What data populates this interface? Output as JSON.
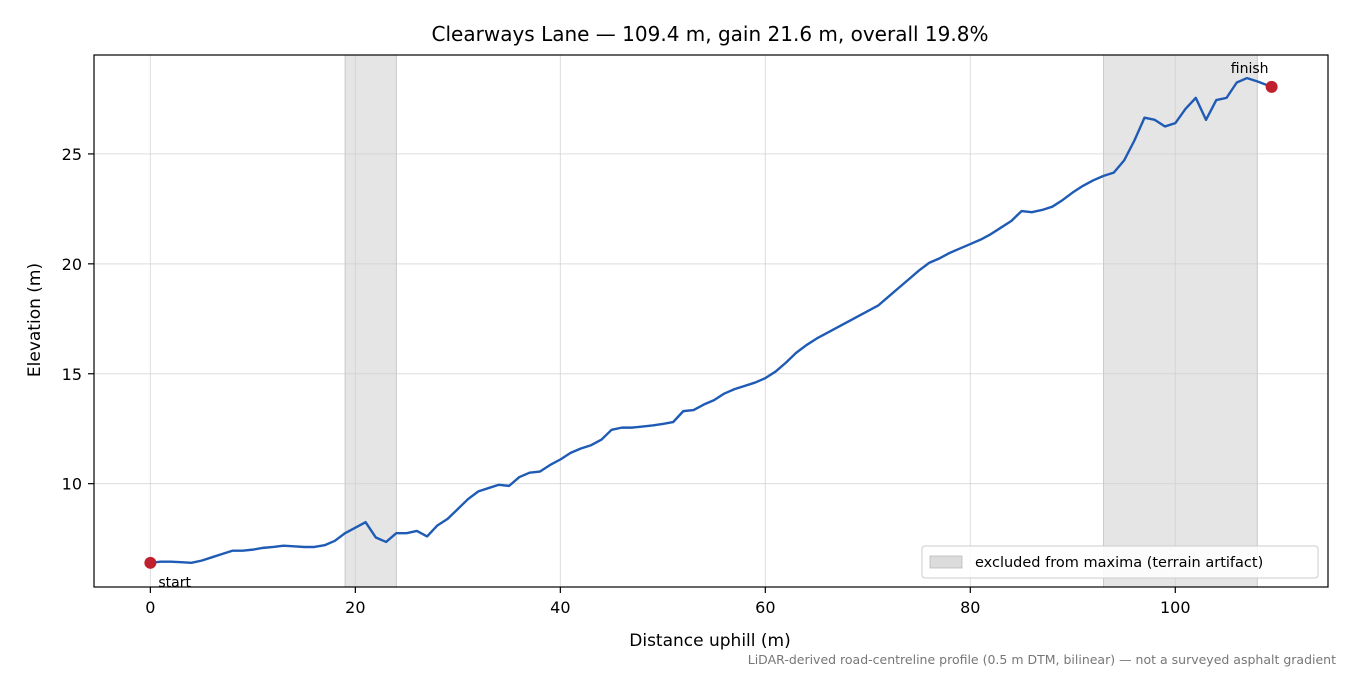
{
  "chart_data": {
    "type": "line",
    "title": "Clearways Lane — 109.4 m, gain 21.6 m, overall 19.8%",
    "xlabel": "Distance uphill (m)",
    "ylabel": "Elevation (m)",
    "xlim": [
      -5.5,
      114.9
    ],
    "ylim": [
      5.3,
      29.5
    ],
    "xticks": [
      0,
      20,
      40,
      60,
      80,
      100
    ],
    "yticks": [
      10,
      15,
      20,
      25
    ],
    "grid": true,
    "line_color": "#1f5bb5",
    "marker_color": "#c0202e",
    "band_color": "#dcdcdc",
    "series": [
      {
        "x": [
          0,
          1,
          2,
          3,
          4,
          5,
          6,
          7,
          8,
          9,
          10,
          11,
          12,
          13,
          14,
          15,
          16,
          17,
          18,
          19,
          20,
          21,
          22,
          23,
          24,
          25,
          26,
          27,
          28,
          29,
          30,
          31,
          32,
          33,
          34,
          35,
          36,
          37,
          38,
          39,
          40,
          41,
          42,
          43,
          44,
          45,
          46,
          47,
          48,
          49,
          50,
          51,
          52,
          53,
          54,
          55,
          56,
          57,
          58,
          59,
          60,
          61,
          62,
          63,
          64,
          65,
          66,
          67,
          68,
          69,
          70,
          71,
          72,
          73,
          74,
          75,
          76,
          77,
          78,
          79,
          80,
          81,
          82,
          83,
          84,
          85,
          86,
          87,
          88,
          89,
          90,
          91,
          92,
          93,
          94,
          95,
          96,
          97,
          98,
          99,
          100,
          101,
          102,
          103,
          104,
          105,
          106,
          107,
          108,
          109.4
        ],
        "y": [
          6.4,
          6.45,
          6.45,
          6.43,
          6.4,
          6.5,
          6.65,
          6.8,
          6.95,
          6.95,
          7.0,
          7.08,
          7.12,
          7.18,
          7.15,
          7.12,
          7.12,
          7.2,
          7.4,
          7.75,
          8.0,
          8.25,
          7.55,
          7.35,
          7.75,
          7.75,
          7.85,
          7.6,
          8.1,
          8.4,
          8.85,
          9.3,
          9.65,
          9.8,
          9.95,
          9.9,
          10.3,
          10.5,
          10.55,
          10.85,
          11.1,
          11.4,
          11.6,
          11.75,
          12.0,
          12.45,
          12.55,
          12.55,
          12.6,
          12.65,
          12.72,
          12.8,
          13.3,
          13.35,
          13.6,
          13.8,
          14.1,
          14.3,
          14.45,
          14.6,
          14.8,
          15.1,
          15.5,
          15.95,
          16.3,
          16.6,
          16.85,
          17.1,
          17.35,
          17.6,
          17.85,
          18.1,
          18.5,
          18.9,
          19.3,
          19.7,
          20.05,
          20.25,
          20.5,
          20.7,
          20.9,
          21.1,
          21.35,
          21.65,
          21.95,
          22.4,
          22.35,
          22.45,
          22.6,
          22.9,
          23.25,
          23.55,
          23.8,
          24.0,
          24.15,
          24.7,
          25.6,
          26.65,
          26.55,
          26.25,
          26.4,
          27.05,
          27.55,
          26.55,
          27.45,
          27.55,
          28.25,
          28.45,
          28.3,
          28.05
        ]
      }
    ],
    "excluded_bands": [
      [
        19,
        24
      ],
      [
        93,
        108
      ]
    ],
    "legend": {
      "label": "excluded from maxima (terrain artifact)",
      "placement": "lower-right"
    },
    "annotations": {
      "start": {
        "label": "start",
        "x": 0,
        "y": 6.4
      },
      "finish": {
        "label": "finish",
        "x": 109.4,
        "y": 28.05
      }
    },
    "footnote": "LiDAR-derived road-centreline profile (0.5 m DTM, bilinear) — not a surveyed asphalt gradient"
  }
}
